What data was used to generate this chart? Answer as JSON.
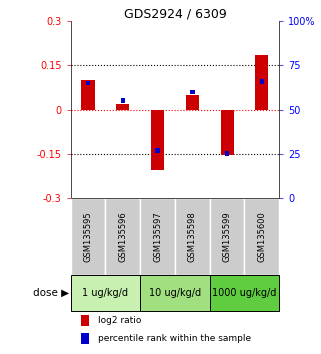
{
  "title": "GDS2924 / 6309",
  "samples": [
    "GSM135595",
    "GSM135596",
    "GSM135597",
    "GSM135598",
    "GSM135599",
    "GSM135600"
  ],
  "log2_ratios": [
    0.1,
    0.02,
    -0.205,
    0.05,
    -0.155,
    0.185
  ],
  "percentile_ranks": [
    65,
    55,
    27,
    60,
    25,
    66
  ],
  "dose_groups": [
    {
      "label": "1 ug/kg/d",
      "samples": [
        0,
        1
      ],
      "color": "#c8f0b0"
    },
    {
      "label": "10 ug/kg/d",
      "samples": [
        2,
        3
      ],
      "color": "#a0e080"
    },
    {
      "label": "1000 ug/kg/d",
      "samples": [
        4,
        5
      ],
      "color": "#60cc40"
    }
  ],
  "ylim_left": [
    -0.3,
    0.3
  ],
  "ylim_right": [
    0,
    100
  ],
  "yticks_left": [
    -0.3,
    -0.15,
    0,
    0.15,
    0.3
  ],
  "yticks_right": [
    0,
    25,
    50,
    75,
    100
  ],
  "ytick_labels_left": [
    "-0.3",
    "-0.15",
    "0",
    "0.15",
    "0.3"
  ],
  "ytick_labels_right": [
    "0",
    "25",
    "50",
    "75",
    "100%"
  ],
  "hlines_dotted": [
    0.15,
    -0.15
  ],
  "hline_zero_color": "red",
  "bar_color": "#cc0000",
  "square_color": "#0000cc",
  "bg_sample_color": "#cccccc",
  "legend_bar": "log2 ratio",
  "legend_square": "percentile rank within the sample",
  "dose_label": "dose"
}
